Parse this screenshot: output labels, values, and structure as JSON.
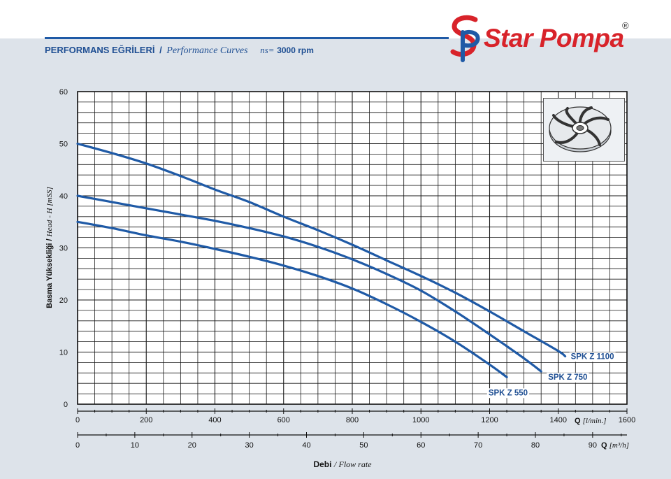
{
  "header": {
    "title_tr": "PERFORMANS EĞRİLERİ",
    "separator": "/",
    "title_en": "Performance Curves",
    "ns_label": "ns=",
    "speed": "3000 rpm"
  },
  "brand": {
    "name": "Star Pompa",
    "registered": "®",
    "logo_icon": "sp-monogram-icon",
    "colors": {
      "red": "#d8232a",
      "blue": "#1f5aa6"
    }
  },
  "impeller_icon": "impeller-icon",
  "chart_data": {
    "type": "line",
    "grid": true,
    "ylabel_tr": "Basma Yüksekliği /",
    "ylabel_en": "Head - H [mSS]",
    "ylim": [
      0,
      60
    ],
    "yticks": [
      "0",
      "10",
      "20",
      "30",
      "40",
      "50",
      "60"
    ],
    "xlim": [
      0,
      1600
    ],
    "xticks_lmin": [
      "0",
      "200",
      "400",
      "600",
      "800",
      "1000",
      "1200",
      "1400",
      "1600"
    ],
    "xunit_lmin_prefix": "Q",
    "xunit_lmin": "[l/min.]",
    "xlim_m3h": [
      0,
      96
    ],
    "xticks_m3h": [
      "0",
      "10",
      "20",
      "30",
      "40",
      "50",
      "60",
      "70",
      "80",
      "90"
    ],
    "xunit_m3h_prefix": "Q",
    "xunit_m3h": "[m³/h]",
    "xlabel_tr": "Debi",
    "xlabel_sep": "/",
    "xlabel_en": "Flow rate",
    "line_color": "#1f5aa6",
    "series": [
      {
        "name": "SPK Z 1100",
        "x": [
          0,
          100,
          200,
          300,
          400,
          500,
          600,
          700,
          800,
          900,
          1000,
          1100,
          1200,
          1300,
          1400,
          1420
        ],
        "y": [
          50,
          48.2,
          46.2,
          43.8,
          41.2,
          38.8,
          36,
          33.4,
          30.6,
          27.6,
          24.6,
          21.4,
          17.8,
          14,
          10.2,
          9.2
        ]
      },
      {
        "name": "SPK Z 750",
        "x": [
          0,
          100,
          200,
          300,
          400,
          500,
          600,
          700,
          800,
          900,
          1000,
          1100,
          1200,
          1300,
          1350
        ],
        "y": [
          40,
          38.8,
          37.6,
          36.4,
          35.2,
          33.8,
          32.2,
          30.2,
          27.8,
          25,
          21.8,
          17.8,
          13.4,
          8.8,
          6.3
        ]
      },
      {
        "name": "SPK Z 550",
        "x": [
          0,
          100,
          200,
          300,
          400,
          500,
          600,
          700,
          800,
          900,
          1000,
          1100,
          1200,
          1250
        ],
        "y": [
          35,
          33.8,
          32.4,
          31.2,
          29.8,
          28.3,
          26.6,
          24.6,
          22.2,
          19.2,
          15.8,
          12,
          7.6,
          5.2
        ]
      }
    ]
  }
}
